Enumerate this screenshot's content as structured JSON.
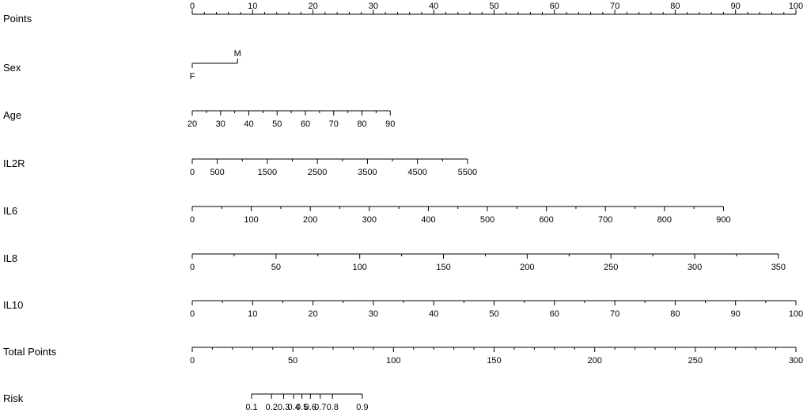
{
  "chart_data": {
    "type": "nomogram",
    "rows": [
      {
        "name": "Points",
        "kind": "axis",
        "min": 0,
        "max": 100,
        "labels": [
          0,
          10,
          20,
          30,
          40,
          50,
          60,
          70,
          80,
          90,
          100
        ],
        "minor_step": 2,
        "label_pos": "above"
      },
      {
        "name": "Sex",
        "kind": "categorical",
        "levels": [
          {
            "label": "F",
            "points": 0
          },
          {
            "label": "M",
            "points": 7.5
          }
        ]
      },
      {
        "name": "Age",
        "kind": "axis",
        "min": 20,
        "max": 90,
        "points_at_min": 0,
        "points_at_max": 32.8,
        "labels": [
          20,
          30,
          40,
          50,
          60,
          70,
          80,
          90
        ],
        "minor_step": 5
      },
      {
        "name": "IL2R",
        "kind": "axis",
        "min": 0,
        "max": 5500,
        "points_at_min": 0,
        "points_at_max": 45.6,
        "labels": [
          0,
          500,
          1500,
          2500,
          3500,
          4500,
          5500
        ],
        "minor_step": 500
      },
      {
        "name": "IL6",
        "kind": "axis",
        "min": 0,
        "max": 900,
        "points_at_min": 0,
        "points_at_max": 88.0,
        "labels": [
          0,
          100,
          200,
          300,
          400,
          500,
          600,
          700,
          800,
          900
        ],
        "minor_step": 50
      },
      {
        "name": "IL8",
        "kind": "axis",
        "min": 0,
        "max": 350,
        "points_at_min": 0,
        "points_at_max": 97.1,
        "labels": [
          0,
          50,
          100,
          150,
          200,
          250,
          300,
          350
        ],
        "minor_step": 25
      },
      {
        "name": "IL10",
        "kind": "axis",
        "min": 0,
        "max": 100,
        "points_at_min": 0,
        "points_at_max": 100,
        "labels": [
          0,
          10,
          20,
          30,
          40,
          50,
          60,
          70,
          80,
          90,
          100
        ],
        "minor_step": 5
      },
      {
        "name": "Total Points",
        "kind": "axis",
        "min": 0,
        "max": 300,
        "labels": [
          0,
          50,
          100,
          150,
          200,
          250,
          300
        ],
        "minor_step": 10
      },
      {
        "name": "Risk",
        "kind": "risk",
        "total_points_scale_max": 300,
        "ticks": [
          {
            "label": "0.1",
            "total_points": 29.5
          },
          {
            "label": "0.2",
            "total_points": 39.4
          },
          {
            "label": "0.3",
            "total_points": 45.4
          },
          {
            "label": "0.4",
            "total_points": 50.4
          },
          {
            "label": "0.5",
            "total_points": 54.5
          },
          {
            "label": "0.6",
            "total_points": 58.7
          },
          {
            "label": "0.7",
            "total_points": 63.6
          },
          {
            "label": "0.8",
            "total_points": 69.7
          },
          {
            "label": "0.9",
            "total_points": 84.5
          }
        ]
      }
    ]
  }
}
